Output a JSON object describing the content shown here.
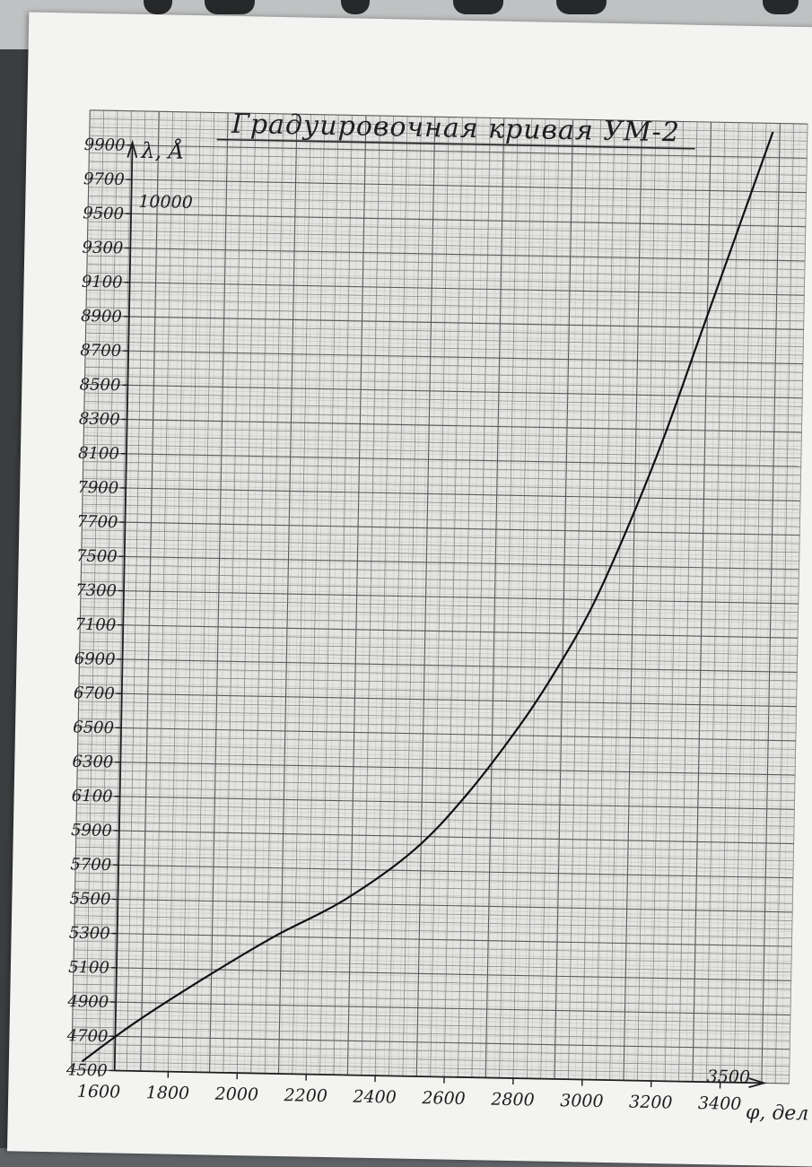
{
  "chart_data": {
    "type": "line",
    "title": "Градуировочная кривая  УМ-2",
    "ylabel": "λ, Å",
    "xlabel": "φ, дел",
    "x_ticks": [
      1600,
      1800,
      2000,
      2200,
      2400,
      2600,
      2800,
      3000,
      3200,
      3400
    ],
    "x_extra_label": "3500",
    "y_ticks": [
      4500,
      4700,
      4900,
      5100,
      5300,
      5500,
      5700,
      5900,
      6100,
      6300,
      6500,
      6700,
      6900,
      7100,
      7300,
      7500,
      7700,
      7900,
      8100,
      8300,
      8500,
      8700,
      8900,
      9100,
      9300,
      9500,
      9700,
      9900
    ],
    "y_extra_label": "10000",
    "xlim": [
      1520,
      3600
    ],
    "ylim": [
      4500,
      10100
    ],
    "grid": true,
    "series": [
      {
        "x": [
          1550,
          1700,
          1900,
          2100,
          2300,
          2500,
          2650,
          2800,
          2900,
          3000,
          3100,
          3200,
          3300,
          3400,
          3500
        ],
        "values": [
          4550,
          4780,
          5050,
          5300,
          5520,
          5820,
          6150,
          6560,
          6880,
          7250,
          7720,
          8250,
          8850,
          9450,
          10050
        ]
      }
    ]
  }
}
